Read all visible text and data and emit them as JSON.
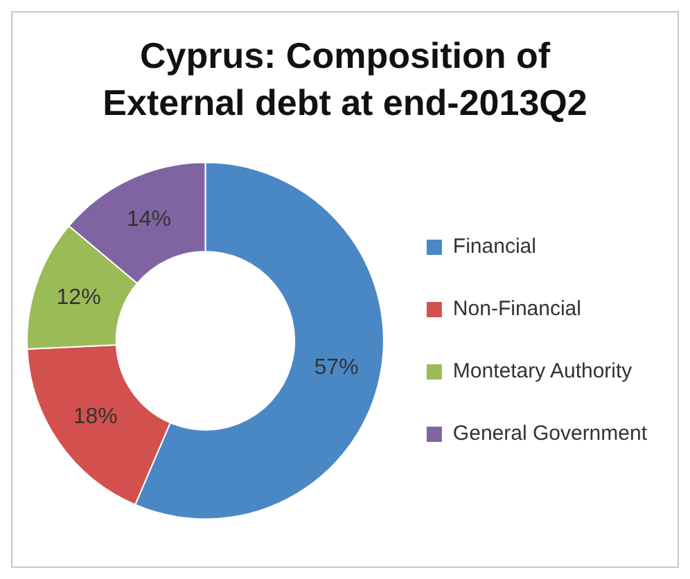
{
  "chart_data": {
    "type": "donut",
    "title": "Cyprus: Composition of External debt at end-2013Q2",
    "categories": [
      "Financial",
      "Non-Financial",
      "Montetary Authority",
      "General Government"
    ],
    "values": [
      57,
      18,
      12,
      14
    ],
    "colors": [
      "#4a87c5",
      "#d2504d",
      "#9bbb59",
      "#8064a2"
    ],
    "value_labels": [
      "57%",
      "18%",
      "12%",
      "14%"
    ],
    "legend": "right"
  }
}
